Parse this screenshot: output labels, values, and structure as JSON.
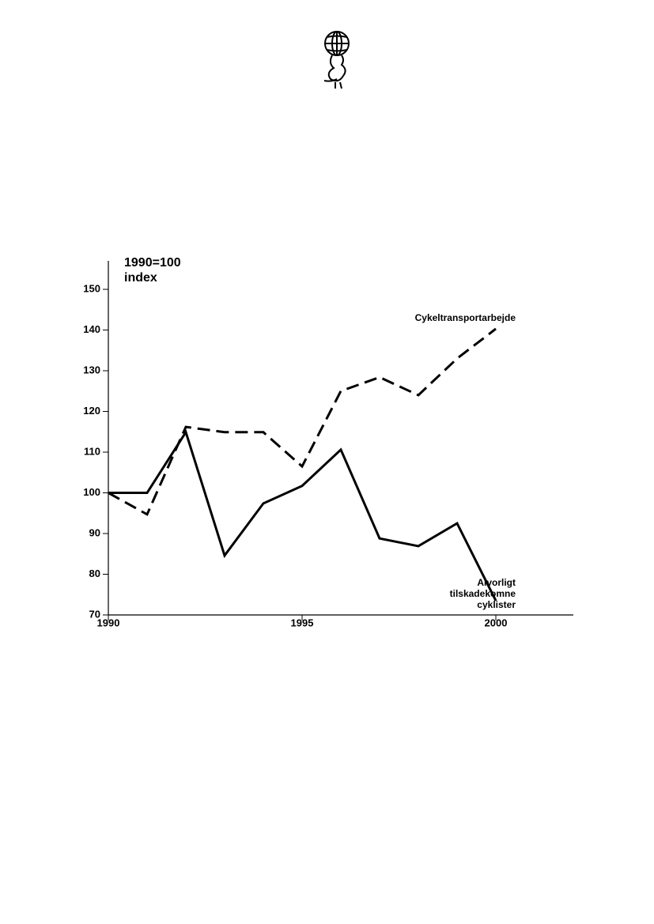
{
  "chart_data": {
    "type": "line",
    "annotations": [
      "1990=100",
      "index"
    ],
    "x": [
      1990,
      1991,
      1992,
      1993,
      1994,
      1995,
      1996,
      1997,
      1998,
      1999,
      2000
    ],
    "series": [
      {
        "name": "Cykeltransportarbejde",
        "color": "#000000",
        "line_style": "dashed",
        "values": [
          100,
          94.7,
          116.2,
          114.9,
          114.9,
          106.5,
          125,
          128.4,
          124,
          133,
          140.3
        ]
      },
      {
        "name": "Alvorligt tilskadekomne cyklister",
        "color": "#000000",
        "line_style": "solid",
        "values": [
          100,
          100,
          114.9,
          84.6,
          97.4,
          101.7,
          110.6,
          88.8,
          86.9,
          92.5,
          73.5
        ]
      }
    ],
    "xlim": [
      1990,
      2002
    ],
    "xticks": [
      1990,
      1995,
      2000
    ],
    "ylim": [
      70,
      157
    ],
    "yticks": [
      70,
      80,
      90,
      100,
      110,
      120,
      130,
      140,
      150
    ],
    "grid": false
  }
}
